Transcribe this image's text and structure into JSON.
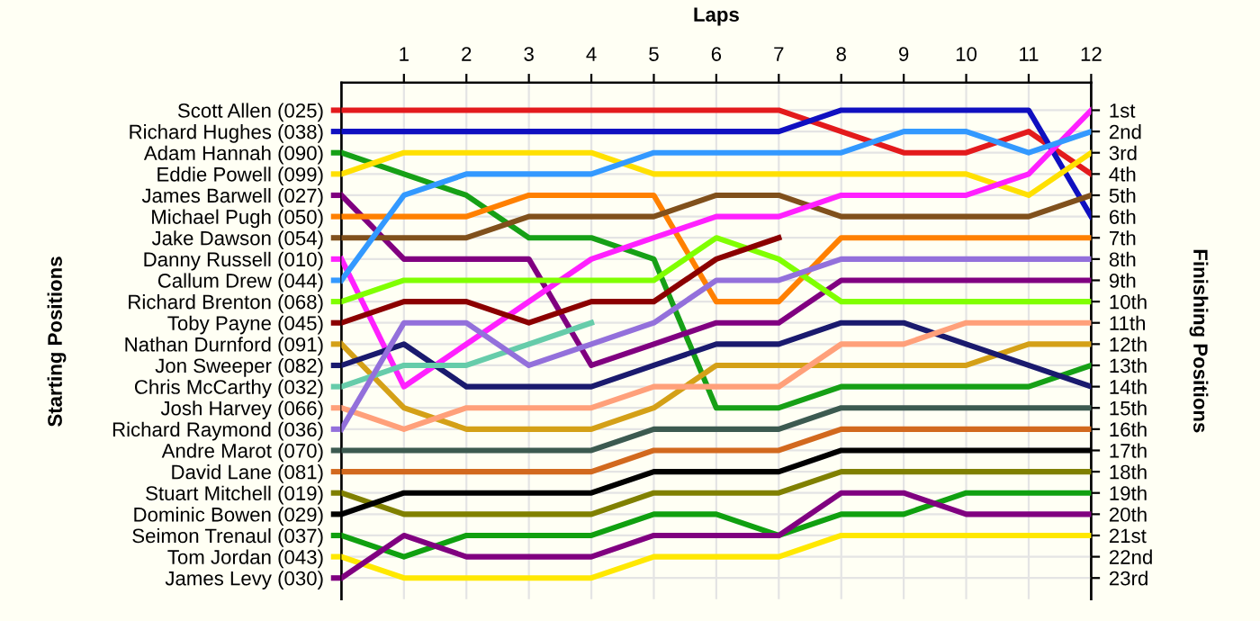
{
  "chart_data": {
    "type": "line",
    "xlabel": "Laps",
    "annotations": [
      "Starting Positions"
    ],
    "y2label": "Finishing Positions",
    "x": [
      0,
      1,
      2,
      3,
      4,
      5,
      6,
      7,
      8,
      9,
      10,
      11,
      12
    ],
    "xlim": [
      0,
      12
    ],
    "xticks": [
      1,
      2,
      3,
      4,
      5,
      6,
      7,
      8,
      9,
      10,
      11,
      12
    ],
    "y2lim": [
      24,
      -0.3
    ],
    "y2ticks": [
      {
        "value": 1,
        "label": "1st"
      },
      {
        "value": 2,
        "label": "2nd"
      },
      {
        "value": 3,
        "label": "3rd"
      },
      {
        "value": 4,
        "label": "4th"
      },
      {
        "value": 5,
        "label": "5th"
      },
      {
        "value": 6,
        "label": "6th"
      },
      {
        "value": 7,
        "label": "7th"
      },
      {
        "value": 8,
        "label": "8th"
      },
      {
        "value": 9,
        "label": "9th"
      },
      {
        "value": 10,
        "label": "10th"
      },
      {
        "value": 11,
        "label": "11th"
      },
      {
        "value": 12,
        "label": "12th"
      },
      {
        "value": 13,
        "label": "13th"
      },
      {
        "value": 14,
        "label": "14th"
      },
      {
        "value": 15,
        "label": "15th"
      },
      {
        "value": 16,
        "label": "16th"
      },
      {
        "value": 17,
        "label": "17th"
      },
      {
        "value": 18,
        "label": "18th"
      },
      {
        "value": 19,
        "label": "19th"
      },
      {
        "value": 20,
        "label": "20th"
      },
      {
        "value": 21,
        "label": "21st"
      },
      {
        "value": 22,
        "label": "22nd"
      },
      {
        "value": 23,
        "label": "23rd"
      }
    ],
    "grid": true,
    "legend": "left",
    "marker": "none",
    "line_style": "solid",
    "series": [
      {
        "name": "Scott Allen (025)",
        "axis": "y2",
        "color": "#e31a1c",
        "values": [
          1,
          1,
          1,
          1,
          1,
          1,
          1,
          1,
          2,
          3,
          3,
          2,
          4
        ]
      },
      {
        "name": "Richard Hughes (038)",
        "axis": "y2",
        "color": "#1010c0",
        "values": [
          2,
          2,
          2,
          2,
          2,
          2,
          2,
          2,
          1,
          1,
          1,
          1,
          6
        ]
      },
      {
        "name": "Adam Hannah (090)",
        "axis": "y2",
        "color": "#16a016",
        "values": [
          3,
          4,
          5,
          7,
          7,
          8,
          15,
          15,
          14,
          14,
          14,
          14,
          13
        ]
      },
      {
        "name": "Eddie Powell (099)",
        "axis": "y2",
        "color": "#ffe000",
        "values": [
          4,
          3,
          3,
          3,
          3,
          4,
          4,
          4,
          4,
          4,
          4,
          5,
          3
        ]
      },
      {
        "name": "James Barwell (027)",
        "axis": "y2",
        "color": "#800080",
        "values": [
          5,
          8,
          8,
          8,
          13,
          12,
          11,
          11,
          9,
          9,
          9,
          9,
          9
        ]
      },
      {
        "name": "Michael Pugh (050)",
        "axis": "y2",
        "color": "#ff8000",
        "values": [
          6,
          6,
          6,
          5,
          5,
          5,
          10,
          10,
          7,
          7,
          7,
          7,
          7
        ]
      },
      {
        "name": "Jake Dawson (054)",
        "axis": "y2",
        "color": "#80501c",
        "values": [
          7,
          7,
          7,
          6,
          6,
          6,
          5,
          5,
          6,
          6,
          6,
          6,
          5
        ]
      },
      {
        "name": "Danny Russell (010)",
        "axis": "y2",
        "color": "#ff20ff",
        "values": [
          8,
          14,
          12,
          10,
          8,
          7,
          6,
          6,
          5,
          5,
          5,
          4,
          1
        ]
      },
      {
        "name": "Callum Drew (044)",
        "axis": "y2",
        "color": "#3399ff",
        "values": [
          9,
          5,
          4,
          4,
          4,
          3,
          3,
          3,
          3,
          2,
          2,
          3,
          2
        ]
      },
      {
        "name": "Richard Brenton (068)",
        "axis": "y2",
        "color": "#80ff00",
        "values": [
          10,
          9,
          9,
          9,
          9,
          9,
          7,
          8,
          10,
          10,
          10,
          10,
          10
        ]
      },
      {
        "name": "Toby Payne (045)",
        "axis": "y2",
        "color": "#8b0000",
        "values": [
          11,
          10,
          10,
          11,
          10,
          10,
          8,
          7,
          null,
          null,
          null,
          null,
          null
        ]
      },
      {
        "name": "Nathan Durnford (091)",
        "axis": "y2",
        "color": "#d4a017",
        "values": [
          12,
          15,
          16,
          16,
          16,
          15,
          13,
          13,
          13,
          13,
          13,
          12,
          12
        ]
      },
      {
        "name": "Jon Sweeper (082)",
        "axis": "y2",
        "color": "#1a1a6e",
        "values": [
          13,
          12,
          14,
          14,
          14,
          13,
          12,
          12,
          11,
          11,
          12,
          13,
          14
        ]
      },
      {
        "name": "Chris McCarthy (032)",
        "axis": "y2",
        "color": "#66ccaa",
        "values": [
          14,
          13,
          13,
          12,
          11,
          null,
          null,
          null,
          null,
          null,
          null,
          null,
          null
        ]
      },
      {
        "name": "Josh Harvey (066)",
        "axis": "y2",
        "color": "#ffa07a",
        "values": [
          15,
          16,
          15,
          15,
          15,
          14,
          14,
          14,
          12,
          12,
          11,
          11,
          11
        ]
      },
      {
        "name": "Richard Raymond (036)",
        "axis": "y2",
        "color": "#9370db",
        "values": [
          16,
          11,
          11,
          13,
          12,
          11,
          9,
          9,
          8,
          8,
          8,
          8,
          8
        ]
      },
      {
        "name": "Andre Marot (070)",
        "axis": "y2",
        "color": "#3c5a50",
        "values": [
          17,
          17,
          17,
          17,
          17,
          16,
          16,
          16,
          15,
          15,
          15,
          15,
          15
        ]
      },
      {
        "name": "David Lane (081)",
        "axis": "y2",
        "color": "#d2691e",
        "values": [
          18,
          18,
          18,
          18,
          18,
          17,
          17,
          17,
          16,
          16,
          16,
          16,
          16
        ]
      },
      {
        "name": "Stuart Mitchell (019)",
        "axis": "y2",
        "color": "#808000",
        "values": [
          19,
          20,
          20,
          20,
          20,
          19,
          19,
          19,
          18,
          18,
          18,
          18,
          18
        ]
      },
      {
        "name": "Dominic Bowen (029)",
        "axis": "y2",
        "color": "#000000",
        "values": [
          20,
          19,
          19,
          19,
          19,
          18,
          18,
          18,
          17,
          17,
          17,
          17,
          17
        ]
      },
      {
        "name": "Seimon Trenaul (037)",
        "axis": "y2",
        "color": "#10a010",
        "values": [
          21,
          22,
          21,
          21,
          21,
          20,
          20,
          21,
          20,
          20,
          19,
          19,
          19
        ]
      },
      {
        "name": "Tom Jordan (043)",
        "axis": "y2",
        "color": "#ffe800",
        "values": [
          22,
          23,
          23,
          23,
          23,
          22,
          22,
          22,
          21,
          21,
          21,
          21,
          21
        ]
      },
      {
        "name": "James Levy (030)",
        "axis": "y2",
        "color": "#800080",
        "values": [
          23,
          21,
          22,
          22,
          22,
          21,
          21,
          21,
          19,
          19,
          20,
          20,
          20
        ]
      }
    ]
  }
}
